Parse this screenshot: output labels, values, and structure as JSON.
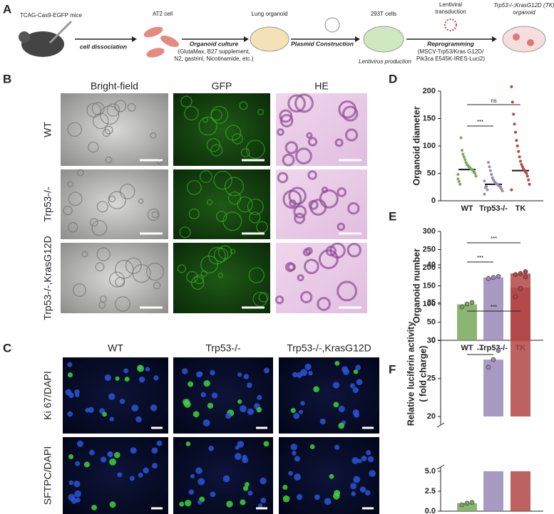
{
  "panel_a": {
    "label": "A",
    "mouse": "TCAG-Cas9-EGFP mice",
    "step1": "cell dissociation",
    "cell": "AT2 cell",
    "step2": "Organoid culture",
    "step2_note": [
      "(GlutaMax, B27 supplement,",
      "N2, gastrinl, Nicotinamide, etc.)"
    ],
    "organoid": "Lung organoid",
    "step3": "Plasmid Construction",
    "cells293": "293T cells",
    "lentivirus": "Lentivirus production",
    "transduction": [
      "Lentiviral",
      "transduction"
    ],
    "step4": "Reprogramming",
    "step4_note": [
      "(MSCV-Trp53/Kras G12D/",
      "Pik3ca E545K-IRES-Luci2)"
    ],
    "result": [
      "Trp53-/-;KrasG12D (TK)",
      "organoid"
    ]
  },
  "panel_b": {
    "label": "B",
    "columns": [
      "Bright-field",
      "GFP",
      "HE"
    ],
    "rows": [
      "WT",
      "Trp53-/-",
      "Trp53-/-,KrasG12D"
    ]
  },
  "panel_c": {
    "label": "C",
    "columns": [
      "WT",
      "Trp53-/-",
      "Trp53-/-,KrasG12D"
    ],
    "rows": [
      "Ki 67/DAPI",
      "SFTPC/DAPI"
    ]
  },
  "chart_data": [
    {
      "type": "scatter",
      "panel": "D",
      "y_label": "Organoid diameter",
      "categories": [
        "WT",
        "Trp53-/-",
        "TK"
      ],
      "colors": [
        "#78a85a",
        "#9a88b8",
        "#b34545"
      ],
      "means": [
        57,
        30,
        55
      ],
      "points": [
        [
          40,
          45,
          50,
          52,
          55,
          57,
          58,
          60,
          62,
          64,
          66,
          70,
          75,
          80,
          85,
          92,
          115,
          30,
          35,
          48
        ],
        [
          12,
          18,
          22,
          25,
          27,
          28,
          30,
          31,
          33,
          35,
          38,
          42,
          48,
          55,
          62,
          70,
          20,
          26,
          24,
          36
        ],
        [
          20,
          30,
          38,
          45,
          50,
          53,
          55,
          58,
          62,
          66,
          72,
          80,
          90,
          100,
          110,
          125,
          140,
          158,
          180,
          208
        ]
      ],
      "ylim": [
        0,
        200
      ],
      "yticks": [
        0,
        50,
        100,
        150,
        200
      ],
      "annotations": [
        {
          "text": "***",
          "between": [
            0,
            1
          ]
        },
        {
          "text": "ns",
          "between": [
            0,
            2
          ]
        }
      ]
    },
    {
      "type": "bar",
      "panel": "E",
      "y_label": "Organoid number",
      "categories": [
        "WT",
        "Trp53-/-",
        "TK"
      ],
      "colors": [
        "#78a85a",
        "#9a88b8",
        "#b34545"
      ],
      "values": [
        99,
        173,
        184
      ],
      "points": [
        [
          92,
          100,
          104
        ],
        [
          170,
          173,
          176
        ],
        [
          181,
          184,
          189
        ]
      ],
      "ylim": [
        0,
        300
      ],
      "yticks": [
        0,
        50,
        100,
        150,
        200,
        250,
        300
      ],
      "annotations": [
        {
          "text": "***",
          "between": [
            0,
            1
          ]
        },
        {
          "text": "***",
          "between": [
            0,
            2
          ]
        }
      ]
    },
    {
      "type": "broken-bar",
      "panel": "F",
      "y_label": [
        "Relative luciferin activity",
        "( fold charge)"
      ],
      "categories": [
        "WT",
        "Trp53-/-",
        "TK"
      ],
      "colors": [
        "#78a85a",
        "#9a88b8",
        "#b34545"
      ],
      "values": [
        1.0,
        27.5,
        37
      ],
      "points": [
        [
          0.8,
          1.0,
          1.1
        ],
        [
          26.5,
          27.5,
          28.7
        ],
        [
          35.8,
          36.9,
          38.4
        ]
      ],
      "ylim": [
        0,
        40
      ],
      "segments": [
        [
          0,
          5
        ],
        [
          20,
          40
        ]
      ],
      "yticks": [
        {
          "value": 0,
          "label": "0.0"
        },
        2.5,
        {
          "value": 5,
          "label": "5.0"
        },
        20,
        25,
        30,
        35,
        40
      ],
      "annotations": [
        {
          "text": "***",
          "between": [
            0,
            1
          ]
        },
        {
          "text": "***",
          "between": [
            0,
            2
          ]
        }
      ]
    }
  ]
}
